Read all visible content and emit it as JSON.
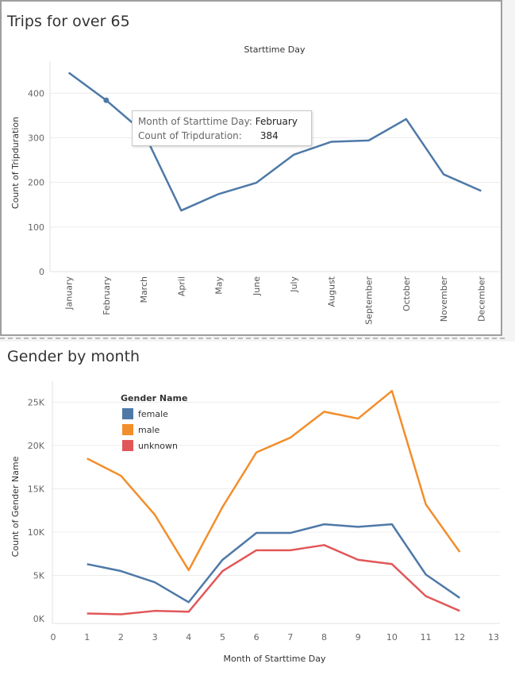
{
  "chart_data": [
    {
      "type": "line",
      "title": "Trips for over 65",
      "column_header": "Starttime Day",
      "ylabel": "Count of Tripduration",
      "xlabel": "",
      "categories": [
        "January",
        "February",
        "March",
        "April",
        "May",
        "June",
        "July",
        "August",
        "September",
        "October",
        "November",
        "December"
      ],
      "values": [
        446,
        384,
        312,
        137,
        174,
        199,
        262,
        291,
        294,
        342,
        218,
        181
      ],
      "ylim": [
        0,
        470
      ],
      "yticks": [
        0,
        100,
        200,
        300,
        400
      ],
      "color": "#4e79a7",
      "grid": true,
      "highlighted_point": "February",
      "tooltip": {
        "key1": "Month of Starttime Day:",
        "val1": "February",
        "key2": "Count of Tripduration:",
        "val2": "384"
      }
    },
    {
      "type": "line",
      "title": "Gender by month",
      "xlabel": "Month of Starttime Day",
      "ylabel": "Count of Gender Name",
      "x": [
        1,
        2,
        3,
        4,
        5,
        6,
        7,
        8,
        9,
        10,
        11,
        12
      ],
      "xlim": [
        0,
        13
      ],
      "xticks": [
        "0",
        "1",
        "2",
        "3",
        "4",
        "5",
        "6",
        "7",
        "8",
        "9",
        "10",
        "11",
        "12",
        "13"
      ],
      "ylim": [
        0,
        26500
      ],
      "yticks": [
        0,
        5000,
        10000,
        15000,
        20000,
        25000
      ],
      "ytick_labels": [
        "0K",
        "5K",
        "10K",
        "15K",
        "20K",
        "25K"
      ],
      "legend_title": "Gender Name",
      "legend_position": "top-left",
      "grid": true,
      "series": [
        {
          "name": "female",
          "color": "#4e79a7",
          "values": [
            6300,
            5500,
            4200,
            1900,
            6800,
            9900,
            9900,
            10900,
            10600,
            10900,
            5100,
            2400
          ]
        },
        {
          "name": "male",
          "color": "#f28e2b",
          "values": [
            18500,
            16500,
            12000,
            5600,
            12900,
            19200,
            20900,
            23900,
            23100,
            26300,
            13200,
            7700
          ]
        },
        {
          "name": "unknown",
          "color": "#e15759",
          "values": [
            600,
            500,
            900,
            800,
            5500,
            7900,
            7900,
            8500,
            6800,
            6300,
            2600,
            900
          ]
        }
      ]
    }
  ]
}
